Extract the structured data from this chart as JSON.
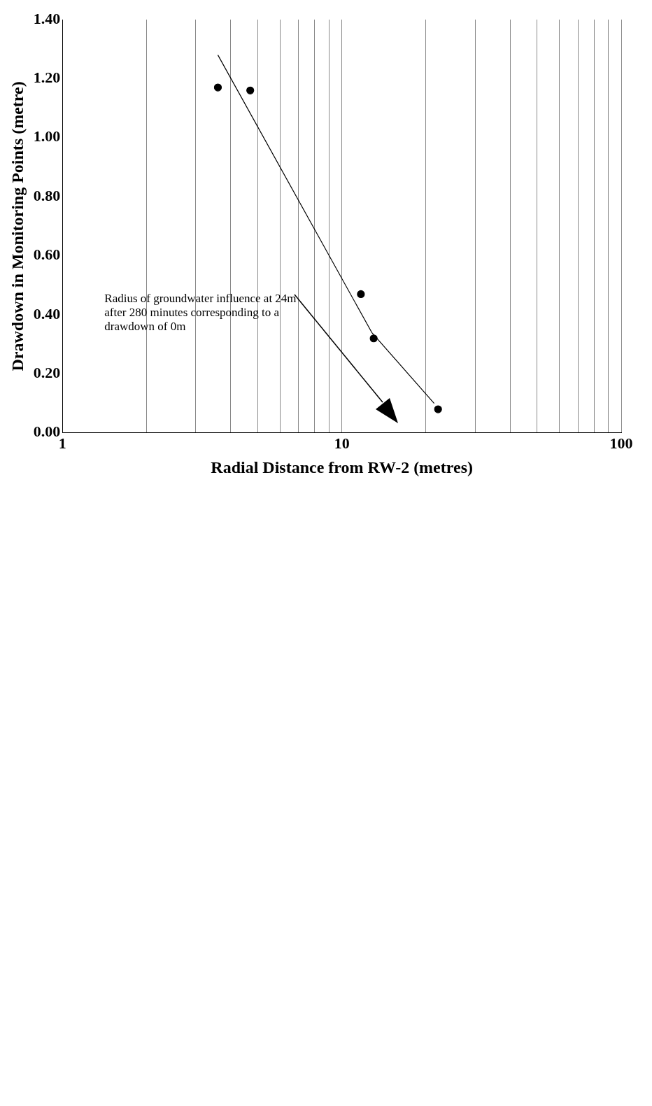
{
  "chart_data": {
    "type": "scatter",
    "xlabel": "Radial Distance from RW-2 (metres)",
    "ylabel": "Drawdown in Monitoring Points (metre)",
    "log": "x",
    "xlim": [
      1,
      100
    ],
    "ylim": [
      0,
      1.4
    ],
    "xticks": [
      1,
      {
        "value": 2,
        "label": null
      },
      {
        "value": 3,
        "label": null
      },
      {
        "value": 4,
        "label": null
      },
      {
        "value": 5,
        "label": null
      },
      {
        "value": 6,
        "label": null
      },
      {
        "value": 7,
        "label": null
      },
      {
        "value": 8,
        "label": null
      },
      {
        "value": 9,
        "label": null
      },
      10,
      {
        "value": 20,
        "label": null
      },
      {
        "value": 30,
        "label": null
      },
      {
        "value": 40,
        "label": null
      },
      {
        "value": 50,
        "label": null
      },
      {
        "value": 60,
        "label": null
      },
      {
        "value": 70,
        "label": null
      },
      {
        "value": 80,
        "label": null
      },
      {
        "value": 90,
        "label": null
      },
      100
    ],
    "yticks": [
      {
        "value": 0,
        "label": "0.00"
      },
      {
        "value": 0.2,
        "label": "0.20"
      },
      {
        "value": 0.4,
        "label": "0.40"
      },
      {
        "value": 0.6,
        "label": "0.60"
      },
      {
        "value": 0.8,
        "label": "0.80"
      },
      {
        "value": 1,
        "label": "1.00"
      },
      {
        "value": 1.2,
        "label": "1.20"
      },
      {
        "value": 1.4,
        "label": "1.40"
      }
    ],
    "grid": "x",
    "legend": false,
    "series": [
      {
        "type": "scatter",
        "marker": "circle",
        "color": "#000000",
        "x": [
          3.6,
          4.7,
          11.7,
          13,
          22.1
        ],
        "values": [
          1.17,
          1.16,
          0.47,
          0.32,
          0.08
        ]
      },
      {
        "type": "line",
        "marker": "none",
        "color": "#000000",
        "x": [
          3.6,
          12.8,
          21.4
        ],
        "values": [
          1.28,
          0.34,
          0.1
        ]
      }
    ],
    "annotations": [
      "Radius of groundwater influence at 24m after 280 minutes corresponding to a drawdown of 0m"
    ]
  }
}
